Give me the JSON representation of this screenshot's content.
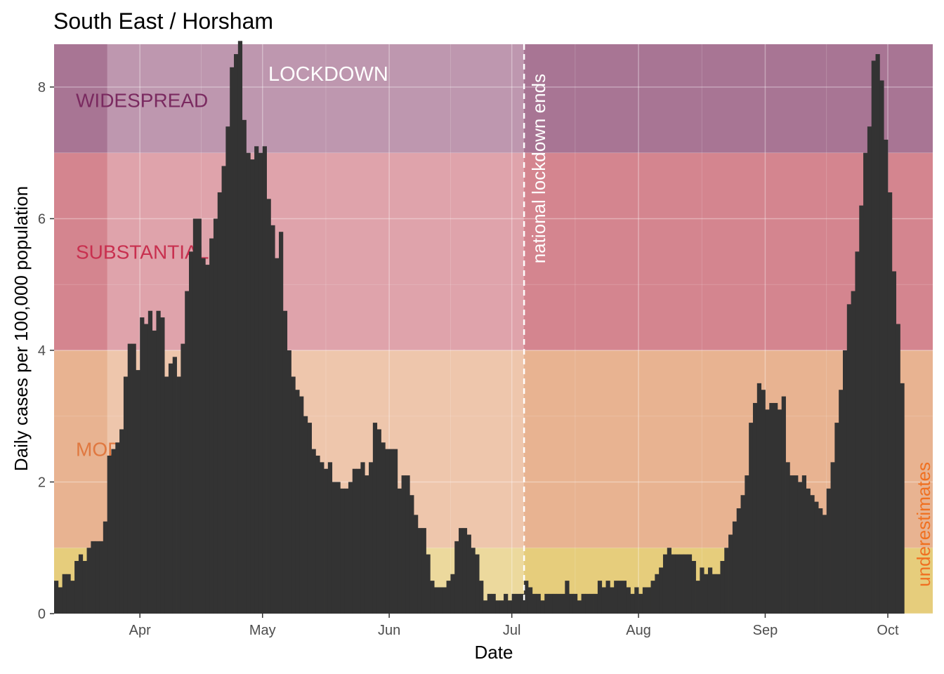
{
  "chart_data": {
    "type": "bar",
    "title": "South East / Horsham",
    "xlabel": "Date",
    "ylabel": "Daily cases per 100,000 population",
    "start_date": "2020-03-11",
    "end_date": "2020-10-12",
    "ylim": [
      0,
      8.65
    ],
    "y_ticks": [
      0,
      2,
      4,
      6,
      8
    ],
    "x_ticks": [
      {
        "label": "Apr",
        "date": "2020-04-01"
      },
      {
        "label": "May",
        "date": "2020-05-01"
      },
      {
        "label": "Jun",
        "date": "2020-06-01"
      },
      {
        "label": "Jul",
        "date": "2020-07-01"
      },
      {
        "label": "Aug",
        "date": "2020-08-01"
      },
      {
        "label": "Sep",
        "date": "2020-09-01"
      },
      {
        "label": "Oct",
        "date": "2020-10-01"
      }
    ],
    "grid": true,
    "bands": [
      {
        "label": "MODERATE",
        "from": 1,
        "to": 4,
        "color": "#e8b391"
      },
      {
        "label": "SUBSTANTIAL",
        "from": 4,
        "to": 7,
        "color": "#d4858f"
      },
      {
        "label": "WIDESPREAD",
        "from": 7,
        "to": 8.65,
        "color": "#a87594"
      }
    ],
    "low_band": {
      "from": 0,
      "to": 1,
      "color": "#e6cd7c"
    },
    "band_label_colors": {
      "MODERATE": "#e07840",
      "SUBSTANTIAL": "#c8304f",
      "WIDESPREAD": "#7a2a60"
    },
    "lockdown": {
      "label": "LOCKDOWN",
      "start": "2020-03-24",
      "end": "2020-07-04"
    },
    "lockdown_end_line": {
      "date": "2020-07-04",
      "label": "national lockdown ends"
    },
    "underestimate_note": {
      "label": "underestimates",
      "color": "#f07020"
    },
    "bar_color": "#333333",
    "values": [
      0.5,
      0.4,
      0.6,
      0.6,
      0.5,
      0.8,
      0.9,
      0.8,
      1.0,
      1.1,
      1.1,
      1.1,
      1.4,
      2.4,
      2.5,
      2.6,
      2.8,
      3.6,
      4.1,
      4.1,
      3.7,
      4.5,
      4.4,
      4.6,
      4.3,
      4.6,
      4.5,
      3.6,
      3.8,
      3.9,
      3.6,
      4.1,
      4.9,
      5.5,
      6.0,
      6.0,
      5.4,
      5.3,
      5.7,
      6.0,
      6.4,
      6.8,
      7.4,
      8.3,
      8.5,
      8.7,
      7.5,
      7.0,
      6.9,
      7.1,
      7.0,
      7.1,
      6.3,
      5.9,
      5.4,
      5.8,
      4.6,
      4.0,
      3.6,
      3.4,
      3.3,
      3.0,
      2.9,
      2.5,
      2.4,
      2.3,
      2.2,
      2.3,
      2.0,
      2.0,
      1.9,
      1.9,
      2.0,
      2.2,
      2.2,
      2.3,
      2.1,
      2.3,
      2.9,
      2.8,
      2.6,
      2.5,
      2.5,
      2.5,
      1.9,
      2.1,
      2.1,
      1.8,
      1.5,
      1.3,
      1.3,
      0.9,
      0.5,
      0.4,
      0.4,
      0.4,
      0.5,
      0.6,
      1.1,
      1.3,
      1.3,
      1.2,
      1.0,
      0.9,
      0.5,
      0.2,
      0.3,
      0.3,
      0.2,
      0.2,
      0.3,
      0.2,
      0.3,
      0.3,
      0.3,
      0.5,
      0.4,
      0.3,
      0.3,
      0.2,
      0.3,
      0.3,
      0.3,
      0.3,
      0.3,
      0.5,
      0.3,
      0.3,
      0.2,
      0.3,
      0.3,
      0.3,
      0.3,
      0.5,
      0.4,
      0.5,
      0.4,
      0.5,
      0.5,
      0.5,
      0.4,
      0.3,
      0.4,
      0.3,
      0.4,
      0.4,
      0.5,
      0.6,
      0.7,
      0.9,
      1.0,
      0.9,
      0.9,
      0.9,
      0.9,
      0.9,
      0.8,
      0.5,
      0.7,
      0.6,
      0.7,
      0.6,
      0.6,
      0.8,
      1.0,
      1.2,
      1.4,
      1.6,
      1.8,
      2.1,
      2.9,
      3.2,
      3.5,
      3.4,
      3.1,
      3.2,
      3.2,
      3.1,
      3.3,
      2.3,
      2.1,
      2.1,
      2.0,
      2.1,
      1.9,
      1.8,
      1.7,
      1.6,
      1.5,
      1.9,
      2.3,
      2.9,
      3.4,
      4.0,
      4.7,
      4.9,
      5.5,
      6.2,
      7.0,
      7.4,
      8.4,
      8.5,
      8.1,
      7.2,
      6.4,
      5.2,
      4.4,
      3.5
    ],
    "annotations": [
      "LOCKDOWN",
      "national lockdown ends",
      "underestimates"
    ]
  }
}
